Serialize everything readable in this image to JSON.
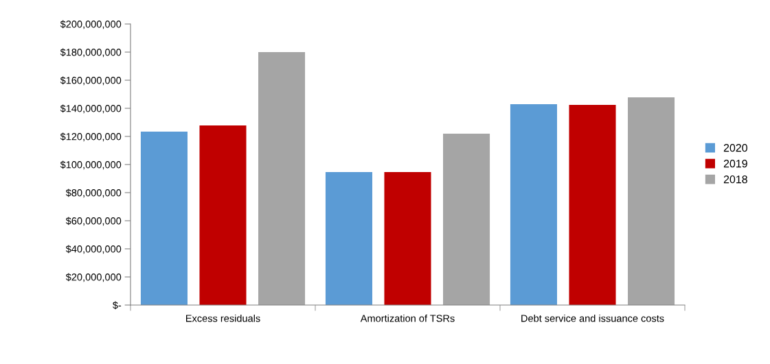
{
  "chart_data": {
    "type": "bar",
    "categories": [
      "Excess residuals",
      "Amortization of TSRs",
      "Debt service and issuance costs"
    ],
    "series": [
      {
        "name": "2020",
        "color": "#5b9bd5",
        "values": [
          123400000,
          94600000,
          142900000
        ]
      },
      {
        "name": "2019",
        "color": "#c00000",
        "values": [
          127800000,
          94600000,
          142400000
        ]
      },
      {
        "name": "2018",
        "color": "#a5a5a5",
        "values": [
          180000000,
          122000000,
          147800000
        ]
      }
    ],
    "ylim": [
      0,
      200000000
    ],
    "yticks": [
      {
        "value": 0,
        "label": "$-"
      },
      {
        "value": 20000000,
        "label": "$20,000,000"
      },
      {
        "value": 40000000,
        "label": "$40,000,000"
      },
      {
        "value": 60000000,
        "label": "$60,000,000"
      },
      {
        "value": 80000000,
        "label": "$80,000,000"
      },
      {
        "value": 100000000,
        "label": "$100,000,000"
      },
      {
        "value": 120000000,
        "label": "$120,000,000"
      },
      {
        "value": 140000000,
        "label": "$140,000,000"
      },
      {
        "value": 160000000,
        "label": "$160,000,000"
      },
      {
        "value": 180000000,
        "label": "$180,000,000"
      },
      {
        "value": 200000000,
        "label": "$200,000,000"
      }
    ],
    "grid": false,
    "legend": "right"
  }
}
